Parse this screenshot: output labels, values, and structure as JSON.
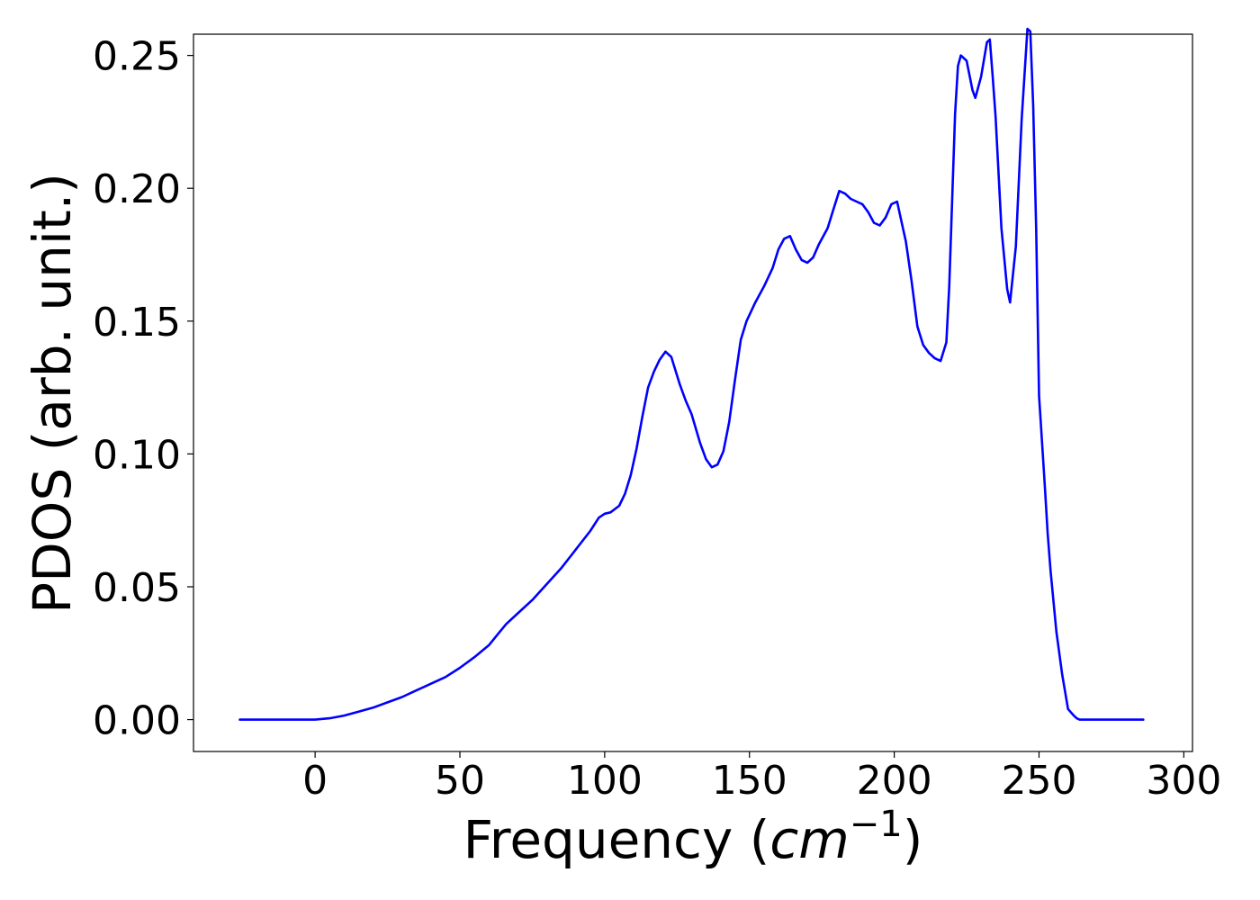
{
  "chart_data": {
    "type": "line",
    "title": "",
    "xlabel": {
      "prefix": "Frequency (",
      "math_base": "cm",
      "math_sup": "−1",
      "suffix": ")"
    },
    "ylabel": "PDOS (arb. unit.)",
    "xlim": [
      -42,
      303
    ],
    "ylim": [
      -0.012,
      0.258
    ],
    "xticks": [
      0,
      50,
      100,
      150,
      200,
      250,
      300
    ],
    "xtick_labels": [
      "0",
      "50",
      "100",
      "150",
      "200",
      "250",
      "300"
    ],
    "yticks": [
      0.0,
      0.05,
      0.1,
      0.15,
      0.2,
      0.25
    ],
    "ytick_labels": [
      "0.00",
      "0.05",
      "0.10",
      "0.15",
      "0.20",
      "0.25"
    ],
    "grid": false,
    "legend": "none",
    "colors": {
      "line": "#0000ff",
      "axes": "#000000"
    },
    "series": [
      {
        "x": [
          -26,
          0,
          5,
          10,
          15,
          20,
          25,
          30,
          35,
          40,
          45,
          50,
          55,
          60,
          63,
          66,
          70,
          75,
          80,
          85,
          90,
          95,
          98,
          100,
          102,
          105,
          107,
          109,
          111,
          113,
          115,
          117,
          119,
          121,
          123,
          124,
          126,
          128,
          130,
          133,
          135,
          137,
          139,
          141,
          143,
          145,
          147,
          149,
          152,
          155,
          158,
          160,
          162,
          164,
          166,
          168,
          170,
          172,
          174,
          177,
          179,
          181,
          183,
          185,
          187,
          189,
          191,
          193,
          195,
          197,
          199,
          201,
          202,
          204,
          206,
          208,
          210,
          212,
          214,
          216,
          218,
          219,
          221,
          222,
          223,
          225,
          227,
          228,
          230,
          232,
          233,
          234,
          235,
          237,
          239,
          240,
          242,
          244,
          246,
          247,
          248,
          249,
          250,
          251,
          252,
          253,
          254,
          256,
          258,
          260,
          262,
          263,
          264,
          266,
          268,
          270,
          275,
          286
        ],
        "y": [
          0.0,
          0.0,
          0.0005,
          0.0015,
          0.003,
          0.0045,
          0.0065,
          0.0085,
          0.011,
          0.0135,
          0.016,
          0.0195,
          0.0235,
          0.028,
          0.032,
          0.036,
          0.04,
          0.045,
          0.051,
          0.057,
          0.064,
          0.071,
          0.076,
          0.0775,
          0.078,
          0.0805,
          0.085,
          0.092,
          0.102,
          0.114,
          0.125,
          0.131,
          0.1355,
          0.1385,
          0.1365,
          0.133,
          0.126,
          0.12,
          0.115,
          0.104,
          0.098,
          0.095,
          0.096,
          0.101,
          0.112,
          0.128,
          0.143,
          0.15,
          0.157,
          0.163,
          0.17,
          0.177,
          0.181,
          0.182,
          0.177,
          0.173,
          0.172,
          0.174,
          0.179,
          0.185,
          0.192,
          0.199,
          0.198,
          0.196,
          0.195,
          0.194,
          0.191,
          0.187,
          0.186,
          0.189,
          0.194,
          0.195,
          0.19,
          0.18,
          0.165,
          0.148,
          0.141,
          0.138,
          0.136,
          0.135,
          0.142,
          0.163,
          0.228,
          0.246,
          0.25,
          0.248,
          0.237,
          0.234,
          0.242,
          0.255,
          0.256,
          0.242,
          0.227,
          0.185,
          0.162,
          0.157,
          0.178,
          0.226,
          0.26,
          0.259,
          0.231,
          0.185,
          0.122,
          0.105,
          0.088,
          0.07,
          0.056,
          0.033,
          0.017,
          0.004,
          0.0015,
          0.0005,
          0.0,
          0.0,
          0.0,
          0.0,
          0.0,
          0.0
        ]
      }
    ]
  }
}
